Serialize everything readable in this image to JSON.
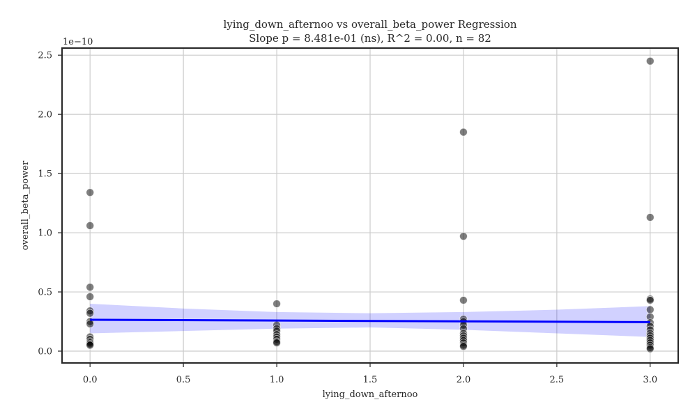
{
  "chart_data": {
    "type": "scatter",
    "title": "lying_down_afternoo vs overall_beta_power Regression",
    "subtitle": "Slope p = 8.481e-01 (ns), R^2 = 0.00, n = 82",
    "xlabel": "lying_down_afternoo",
    "ylabel": "overall_beta_power",
    "y_scale_label": "1e−10",
    "xlim": [
      -0.15,
      3.15
    ],
    "ylim": [
      -0.1,
      2.56
    ],
    "xticks": [
      0.0,
      0.5,
      1.0,
      1.5,
      2.0,
      2.5,
      3.0
    ],
    "xtick_labels": [
      "0.0",
      "0.5",
      "1.0",
      "1.5",
      "2.0",
      "2.5",
      "3.0"
    ],
    "yticks": [
      0.0,
      0.5,
      1.0,
      1.5,
      2.0,
      2.5
    ],
    "ytick_labels": [
      "0.0",
      "0.5",
      "1.0",
      "1.5",
      "2.0",
      "2.5"
    ],
    "grid": true,
    "points": [
      {
        "x": 0,
        "y": 1.34
      },
      {
        "x": 0,
        "y": 1.06
      },
      {
        "x": 0,
        "y": 0.54
      },
      {
        "x": 0,
        "y": 0.46
      },
      {
        "x": 0,
        "y": 0.34
      },
      {
        "x": 0,
        "y": 0.32
      },
      {
        "x": 0,
        "y": 0.25
      },
      {
        "x": 0,
        "y": 0.23
      },
      {
        "x": 0,
        "y": 0.12
      },
      {
        "x": 0,
        "y": 0.1
      },
      {
        "x": 0,
        "y": 0.08
      },
      {
        "x": 0,
        "y": 0.07
      },
      {
        "x": 0,
        "y": 0.06
      },
      {
        "x": 0,
        "y": 0.05
      },
      {
        "x": 1,
        "y": 0.4
      },
      {
        "x": 1,
        "y": 0.22
      },
      {
        "x": 1,
        "y": 0.19
      },
      {
        "x": 1,
        "y": 0.17
      },
      {
        "x": 1,
        "y": 0.14
      },
      {
        "x": 1,
        "y": 0.12
      },
      {
        "x": 1,
        "y": 0.1
      },
      {
        "x": 1,
        "y": 0.08
      },
      {
        "x": 1,
        "y": 0.07
      },
      {
        "x": 2,
        "y": 1.85
      },
      {
        "x": 2,
        "y": 0.97
      },
      {
        "x": 2,
        "y": 0.43
      },
      {
        "x": 2,
        "y": 0.27
      },
      {
        "x": 2,
        "y": 0.25
      },
      {
        "x": 2,
        "y": 0.22
      },
      {
        "x": 2,
        "y": 0.19
      },
      {
        "x": 2,
        "y": 0.15
      },
      {
        "x": 2,
        "y": 0.13
      },
      {
        "x": 2,
        "y": 0.11
      },
      {
        "x": 2,
        "y": 0.09
      },
      {
        "x": 2,
        "y": 0.07
      },
      {
        "x": 2,
        "y": 0.05
      },
      {
        "x": 2,
        "y": 0.04
      },
      {
        "x": 3,
        "y": 2.45
      },
      {
        "x": 3,
        "y": 1.13
      },
      {
        "x": 3,
        "y": 0.44
      },
      {
        "x": 3,
        "y": 0.43
      },
      {
        "x": 3,
        "y": 0.35
      },
      {
        "x": 3,
        "y": 0.29
      },
      {
        "x": 3,
        "y": 0.24
      },
      {
        "x": 3,
        "y": 0.21
      },
      {
        "x": 3,
        "y": 0.18
      },
      {
        "x": 3,
        "y": 0.15
      },
      {
        "x": 3,
        "y": 0.13
      },
      {
        "x": 3,
        "y": 0.11
      },
      {
        "x": 3,
        "y": 0.09
      },
      {
        "x": 3,
        "y": 0.07
      },
      {
        "x": 3,
        "y": 0.05
      },
      {
        "x": 3,
        "y": 0.03
      },
      {
        "x": 3,
        "y": 0.02
      }
    ],
    "regression": {
      "x0": 0.0,
      "y0": 0.265,
      "x1": 3.0,
      "y1": 0.245
    },
    "confidence_band": {
      "x": [
        0.0,
        0.5,
        1.0,
        1.5,
        2.0,
        2.5,
        3.0
      ],
      "upper": [
        0.4,
        0.36,
        0.33,
        0.32,
        0.33,
        0.35,
        0.38
      ],
      "lower": [
        0.15,
        0.17,
        0.19,
        0.2,
        0.18,
        0.15,
        0.12
      ]
    },
    "colors": {
      "points": "#000000",
      "fit": "#0000ff",
      "band": "#0000ff"
    }
  }
}
